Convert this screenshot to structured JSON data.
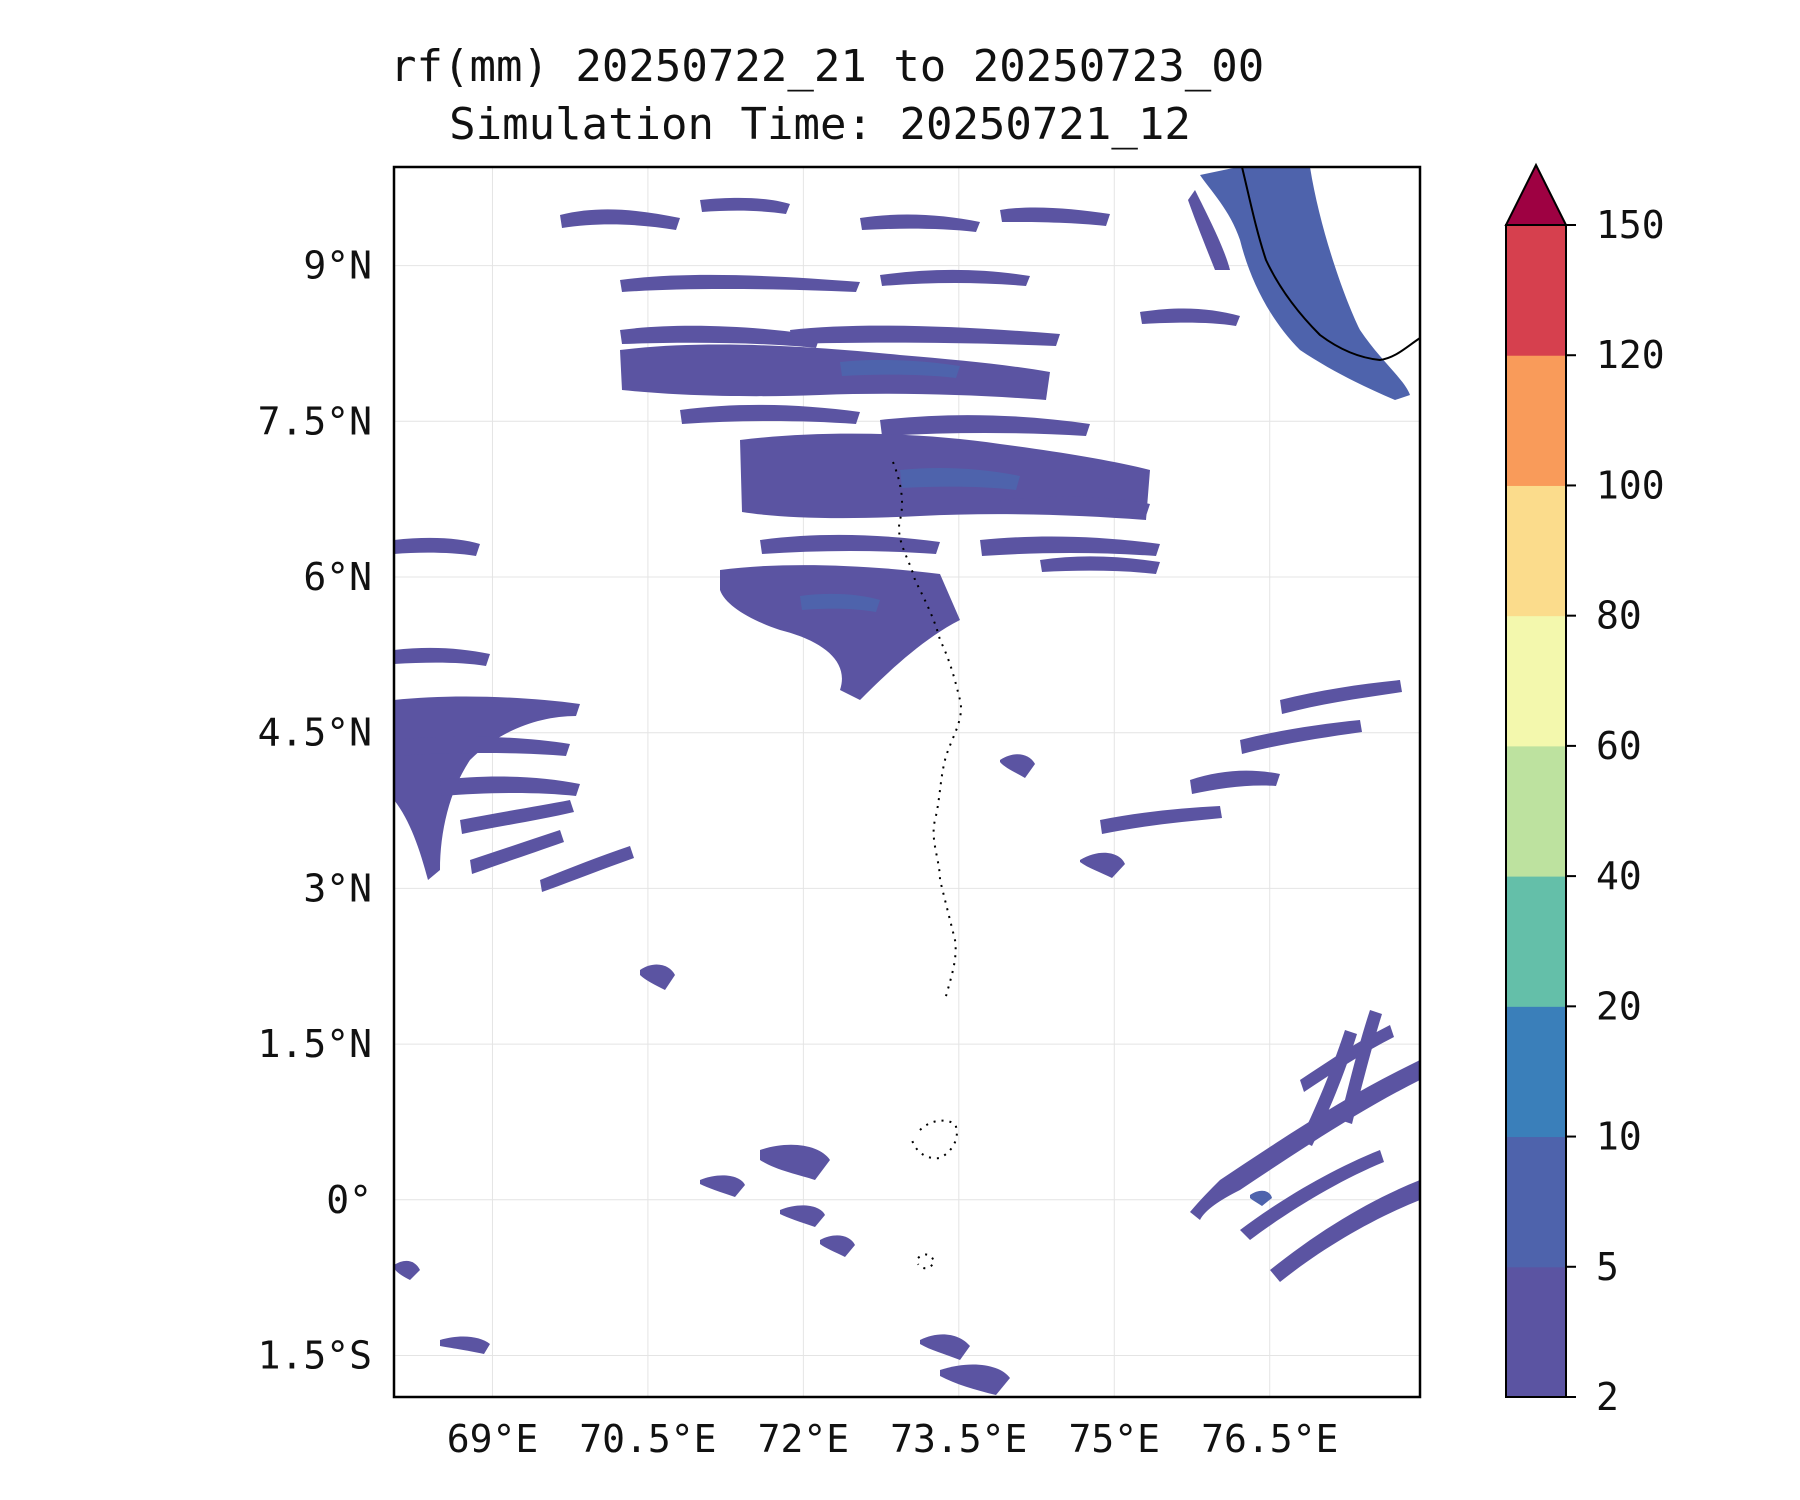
{
  "title": {
    "line1": "rf(mm) 20250722_21 to 20250723_00",
    "line2": "Simulation Time: 20250721_12"
  },
  "map": {
    "lon_ticks": [
      "69°E",
      "70.5°E",
      "72°E",
      "73.5°E",
      "75°E",
      "76.5°E"
    ],
    "lat_ticks": [
      "9°N",
      "7.5°N",
      "6°N",
      "4.5°N",
      "3°N",
      "1.5°N",
      "0°",
      "1.5°S"
    ],
    "lon_tick_values": [
      69,
      70.5,
      72,
      73.5,
      75,
      76.5
    ],
    "lat_tick_values": [
      9,
      7.5,
      6,
      4.5,
      3,
      1.5,
      0,
      -1.5
    ],
    "lon_range": [
      68.05,
      77.95
    ],
    "lat_range": [
      -1.9,
      9.95
    ],
    "gridlines": true,
    "coastline_color": "#000000"
  },
  "colorbar": {
    "levels": [
      "2",
      "5",
      "10",
      "20",
      "40",
      "60",
      "80",
      "100",
      "120",
      "150"
    ],
    "colors": [
      "#5b54a2",
      "#4e63ac",
      "#3a7fba",
      "#64bfa9",
      "#bde29f",
      "#f3f8ad",
      "#fbdc8c",
      "#f99b5a",
      "#d6404e"
    ],
    "extend_color": "#9e0142",
    "extend": "max"
  },
  "rain_fill_color": "#5b54a2",
  "rain_heavy_color": "#4e63ac"
}
